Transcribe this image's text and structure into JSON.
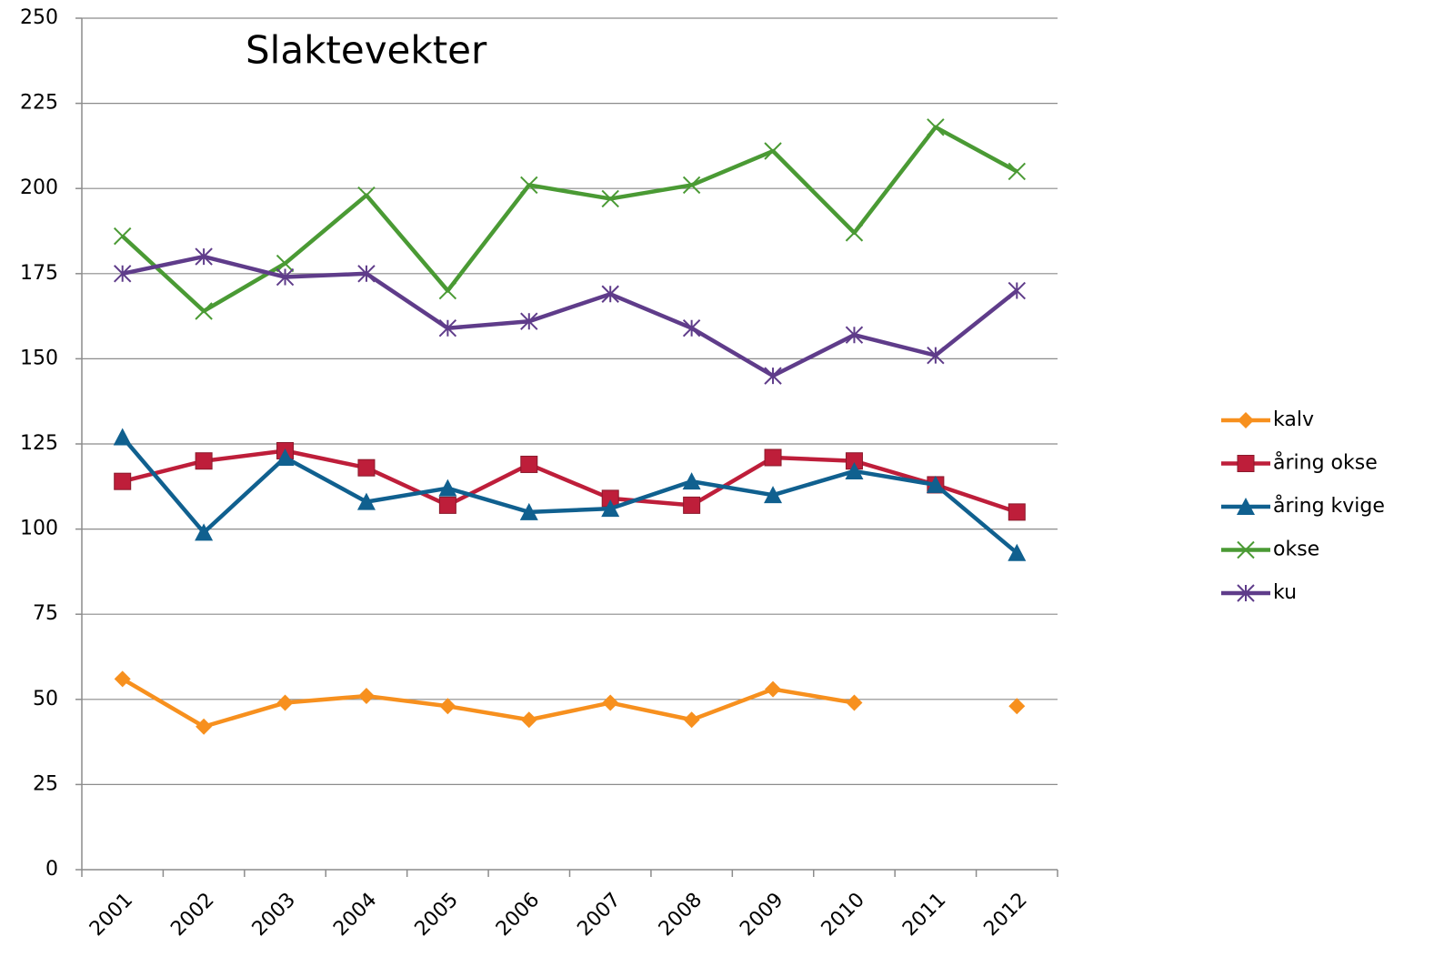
{
  "chart_data": {
    "type": "line",
    "title": "Slaktevekter",
    "categories": [
      "2001",
      "2002",
      "2003",
      "2004",
      "2005",
      "2006",
      "2007",
      "2008",
      "2009",
      "2010",
      "2011",
      "2012"
    ],
    "series": [
      {
        "name": "kalv",
        "color": "#f7901e",
        "marker": "diamond",
        "values": [
          56,
          42,
          49,
          51,
          48,
          44,
          49,
          44,
          53,
          49,
          null,
          48
        ]
      },
      {
        "name": "åring okse",
        "color": "#be1e3a",
        "marker": "square",
        "values": [
          114,
          120,
          123,
          118,
          107,
          119,
          109,
          107,
          121,
          120,
          113,
          105
        ]
      },
      {
        "name": "åring kvige",
        "color": "#10608f",
        "marker": "triangle",
        "values": [
          127,
          99,
          121,
          108,
          112,
          105,
          106,
          114,
          110,
          117,
          113,
          93
        ]
      },
      {
        "name": "okse",
        "color": "#4a9a34",
        "marker": "x",
        "values": [
          186,
          164,
          178,
          198,
          170,
          201,
          197,
          201,
          211,
          187,
          218,
          205
        ]
      },
      {
        "name": "ku",
        "color": "#5f3c8a",
        "marker": "star",
        "values": [
          175,
          180,
          174,
          175,
          159,
          161,
          169,
          159,
          145,
          157,
          151,
          170
        ]
      }
    ],
    "ylim": [
      0,
      250
    ],
    "yticks": [
      0,
      25,
      50,
      75,
      100,
      125,
      150,
      175,
      200,
      225,
      250
    ],
    "grid": true,
    "legend": "right"
  }
}
